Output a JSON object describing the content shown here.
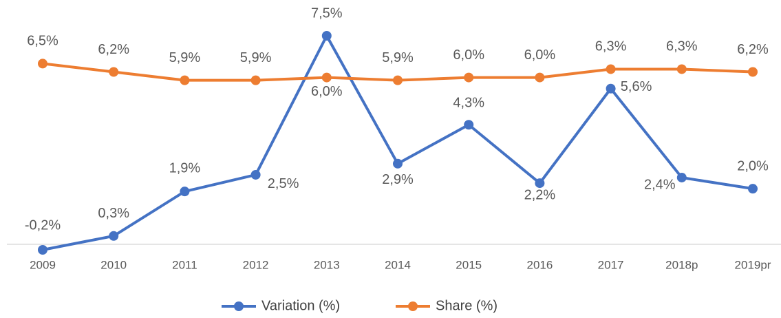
{
  "chart_data": {
    "type": "line",
    "categories": [
      "2009",
      "2010",
      "2011",
      "2012",
      "2013",
      "2014",
      "2015",
      "2016",
      "2017",
      "2018p",
      "2019pr"
    ],
    "series": [
      {
        "name": "Variation (%)",
        "color": "#4472c4",
        "values": [
          -0.2,
          0.3,
          1.9,
          2.5,
          7.5,
          2.9,
          4.3,
          2.2,
          5.6,
          2.4,
          2.0
        ],
        "value_labels": [
          "-0,2%",
          "0,3%",
          "1,9%",
          "2,5%",
          "7,5%",
          "2,9%",
          "4,3%",
          "2,2%",
          "5,6%",
          "2,4%",
          "2,0%"
        ]
      },
      {
        "name": "Share (%)",
        "color": "#ed7d31",
        "values": [
          6.5,
          6.2,
          5.9,
          5.9,
          6.0,
          5.9,
          6.0,
          6.0,
          6.3,
          6.3,
          6.2
        ],
        "value_labels": [
          "6,5%",
          "6,2%",
          "5,9%",
          "5,9%",
          "6,0%",
          "5,9%",
          "6,0%",
          "6,0%",
          "6,3%",
          "6,3%",
          "6,2%"
        ]
      }
    ],
    "legend": "bottom"
  }
}
